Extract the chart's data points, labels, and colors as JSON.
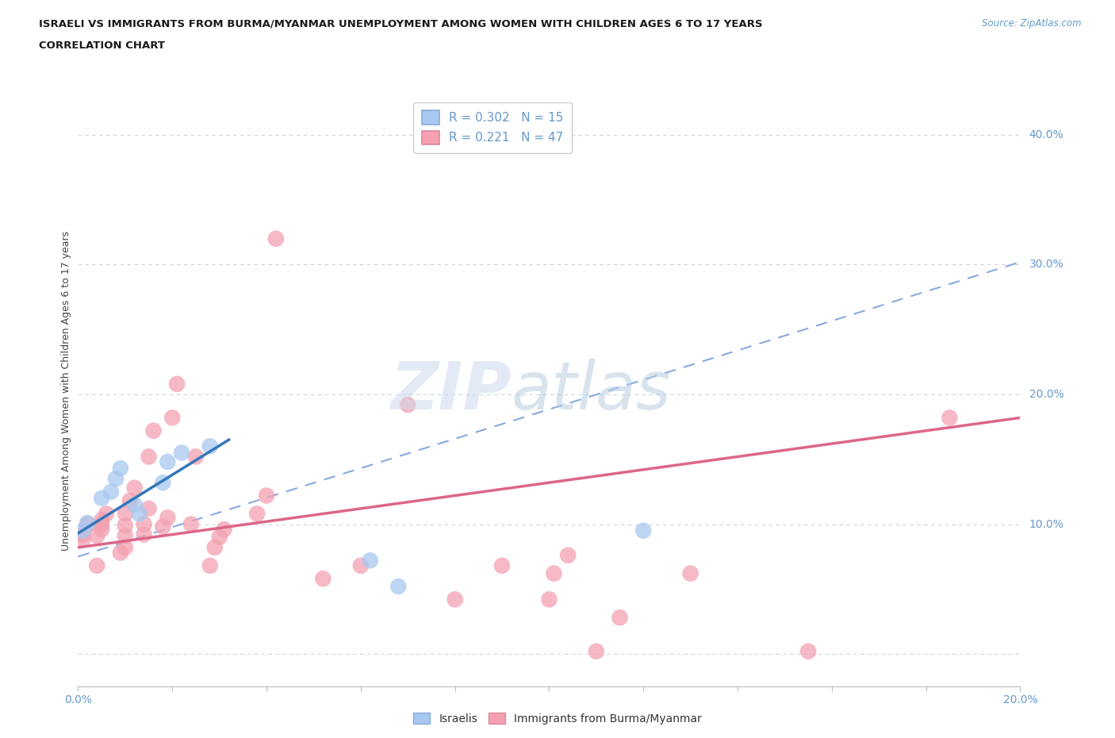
{
  "title_line1": "ISRAELI VS IMMIGRANTS FROM BURMA/MYANMAR UNEMPLOYMENT AMONG WOMEN WITH CHILDREN AGES 6 TO 17 YEARS",
  "title_line2": "CORRELATION CHART",
  "source": "Source: ZipAtlas.com",
  "ylabel": "Unemployment Among Women with Children Ages 6 to 17 years",
  "xlim": [
    0.0,
    0.2
  ],
  "ylim": [
    -0.025,
    0.43
  ],
  "israelis_color": "#a8c8f0",
  "immigrants_color": "#f4a0b0",
  "israelis_R": 0.302,
  "israelis_N": 15,
  "immigrants_R": 0.221,
  "immigrants_N": 47,
  "israelis_scatter": [
    [
      0.001,
      0.095
    ],
    [
      0.002,
      0.101
    ],
    [
      0.005,
      0.12
    ],
    [
      0.007,
      0.125
    ],
    [
      0.008,
      0.135
    ],
    [
      0.009,
      0.143
    ],
    [
      0.012,
      0.115
    ],
    [
      0.013,
      0.108
    ],
    [
      0.018,
      0.132
    ],
    [
      0.019,
      0.148
    ],
    [
      0.022,
      0.155
    ],
    [
      0.028,
      0.16
    ],
    [
      0.062,
      0.072
    ],
    [
      0.068,
      0.052
    ],
    [
      0.12,
      0.095
    ]
  ],
  "immigrants_scatter": [
    [
      0.001,
      0.088
    ],
    [
      0.001,
      0.092
    ],
    [
      0.002,
      0.1
    ],
    [
      0.004,
      0.068
    ],
    [
      0.004,
      0.091
    ],
    [
      0.005,
      0.096
    ],
    [
      0.005,
      0.1
    ],
    [
      0.005,
      0.103
    ],
    [
      0.006,
      0.108
    ],
    [
      0.009,
      0.078
    ],
    [
      0.01,
      0.082
    ],
    [
      0.01,
      0.091
    ],
    [
      0.01,
      0.099
    ],
    [
      0.01,
      0.108
    ],
    [
      0.011,
      0.118
    ],
    [
      0.012,
      0.128
    ],
    [
      0.014,
      0.092
    ],
    [
      0.014,
      0.1
    ],
    [
      0.015,
      0.112
    ],
    [
      0.015,
      0.152
    ],
    [
      0.016,
      0.172
    ],
    [
      0.018,
      0.098
    ],
    [
      0.019,
      0.105
    ],
    [
      0.02,
      0.182
    ],
    [
      0.021,
      0.208
    ],
    [
      0.024,
      0.1
    ],
    [
      0.025,
      0.152
    ],
    [
      0.028,
      0.068
    ],
    [
      0.029,
      0.082
    ],
    [
      0.03,
      0.09
    ],
    [
      0.031,
      0.096
    ],
    [
      0.038,
      0.108
    ],
    [
      0.04,
      0.122
    ],
    [
      0.042,
      0.32
    ],
    [
      0.052,
      0.058
    ],
    [
      0.06,
      0.068
    ],
    [
      0.07,
      0.192
    ],
    [
      0.08,
      0.042
    ],
    [
      0.09,
      0.068
    ],
    [
      0.1,
      0.042
    ],
    [
      0.101,
      0.062
    ],
    [
      0.104,
      0.076
    ],
    [
      0.11,
      0.002
    ],
    [
      0.115,
      0.028
    ],
    [
      0.13,
      0.062
    ],
    [
      0.155,
      0.002
    ],
    [
      0.185,
      0.182
    ]
  ],
  "israelis_trendline_solid": {
    "x": [
      0.0,
      0.032
    ],
    "y": [
      0.093,
      0.165
    ]
  },
  "israelis_trendline_dashed": {
    "x": [
      0.0,
      0.2
    ],
    "y": [
      0.075,
      0.302
    ]
  },
  "immigrants_trendline": {
    "x": [
      0.0,
      0.2
    ],
    "y": [
      0.082,
      0.182
    ]
  },
  "ytick_positions": [
    0.0,
    0.1,
    0.2,
    0.3,
    0.4
  ],
  "ytick_labels_right": [
    "",
    "10.0%",
    "20.0%",
    "30.0%",
    "40.0%"
  ],
  "xtick_positions": [
    0.0,
    0.1,
    0.2
  ],
  "xtick_labels": [
    "0.0%",
    "",
    "20.0%"
  ],
  "grid_color": "#c8d4e8",
  "background_color": "#ffffff",
  "tick_color": "#6699cc",
  "watermark_zip_color": "#cddaed",
  "watermark_atlas_color": "#b8cce0"
}
